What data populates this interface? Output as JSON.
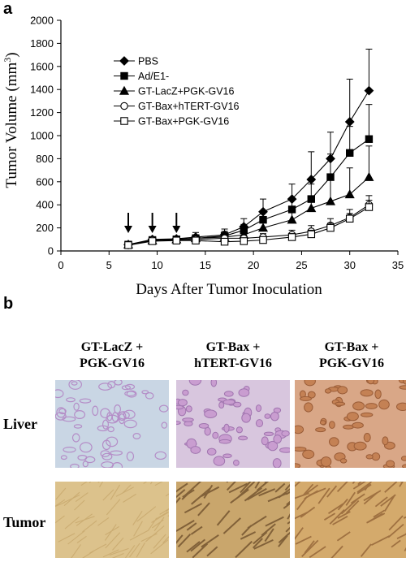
{
  "panel_a_label": "a",
  "panel_b_label": "b",
  "chart_data": {
    "type": "line",
    "ylabel_main": "Tumor Volume (mm",
    "ylabel_sup": "3",
    "ylabel_end": ")",
    "xlabel": "Days After Tumor Inoculation",
    "xlim": [
      0,
      35
    ],
    "ylim": [
      0,
      2000
    ],
    "x_ticks": [
      "0",
      "5",
      "10",
      "15",
      "20",
      "25",
      "30",
      "35"
    ],
    "y_ticks": [
      "0",
      "200",
      "400",
      "600",
      "800",
      "1000",
      "1200",
      "1400",
      "1600",
      "1800",
      "2000"
    ],
    "arrows_at_x": [
      7,
      9.5,
      12
    ],
    "legend_position": "top-left",
    "x": [
      7,
      9.5,
      12,
      14,
      17,
      19,
      21,
      24,
      26,
      28,
      30,
      32
    ],
    "series": [
      {
        "name": "PBS",
        "marker": "diamond-filled",
        "values": [
          55,
          100,
          105,
          120,
          140,
          210,
          340,
          450,
          620,
          800,
          1120,
          1390
        ],
        "errors": [
          20,
          20,
          25,
          40,
          50,
          70,
          110,
          130,
          240,
          230,
          370,
          360
        ]
      },
      {
        "name": "Ad/E1-",
        "marker": "square-filled",
        "values": [
          55,
          95,
          100,
          110,
          130,
          180,
          270,
          360,
          450,
          640,
          850,
          970
        ],
        "errors": [
          20,
          20,
          25,
          30,
          40,
          50,
          70,
          100,
          130,
          200,
          230,
          300
        ]
      },
      {
        "name": "GT-LacZ+PGK-GV16",
        "marker": "triangle-filled",
        "values": [
          55,
          90,
          100,
          110,
          120,
          140,
          200,
          270,
          370,
          430,
          490,
          640
        ],
        "errors": [
          20,
          20,
          20,
          30,
          40,
          50,
          60,
          80,
          100,
          200,
          230,
          270
        ]
      },
      {
        "name": "GT-Bax+hTERT-GV16",
        "marker": "circle-open",
        "values": [
          50,
          95,
          95,
          100,
          110,
          110,
          120,
          140,
          170,
          220,
          290,
          400
        ],
        "errors": [
          20,
          15,
          20,
          25,
          30,
          30,
          30,
          40,
          50,
          60,
          70,
          80
        ]
      },
      {
        "name": "GT-Bax+PGK-GV16",
        "marker": "square-open",
        "values": [
          50,
          85,
          90,
          90,
          80,
          85,
          95,
          120,
          145,
          200,
          280,
          380
        ],
        "errors": [
          20,
          15,
          20,
          20,
          20,
          20,
          25,
          30,
          35,
          40,
          45,
          60
        ]
      }
    ]
  },
  "histology": {
    "columns": [
      {
        "line1": "GT-LacZ +",
        "line2": "PGK-GV16"
      },
      {
        "line1": "GT-Bax +",
        "line2": "hTERT-GV16"
      },
      {
        "line1": "GT-Bax +",
        "line2": "PGK-GV16"
      }
    ],
    "rows": [
      {
        "label": "Liver"
      },
      {
        "label": "Tumor"
      }
    ]
  }
}
